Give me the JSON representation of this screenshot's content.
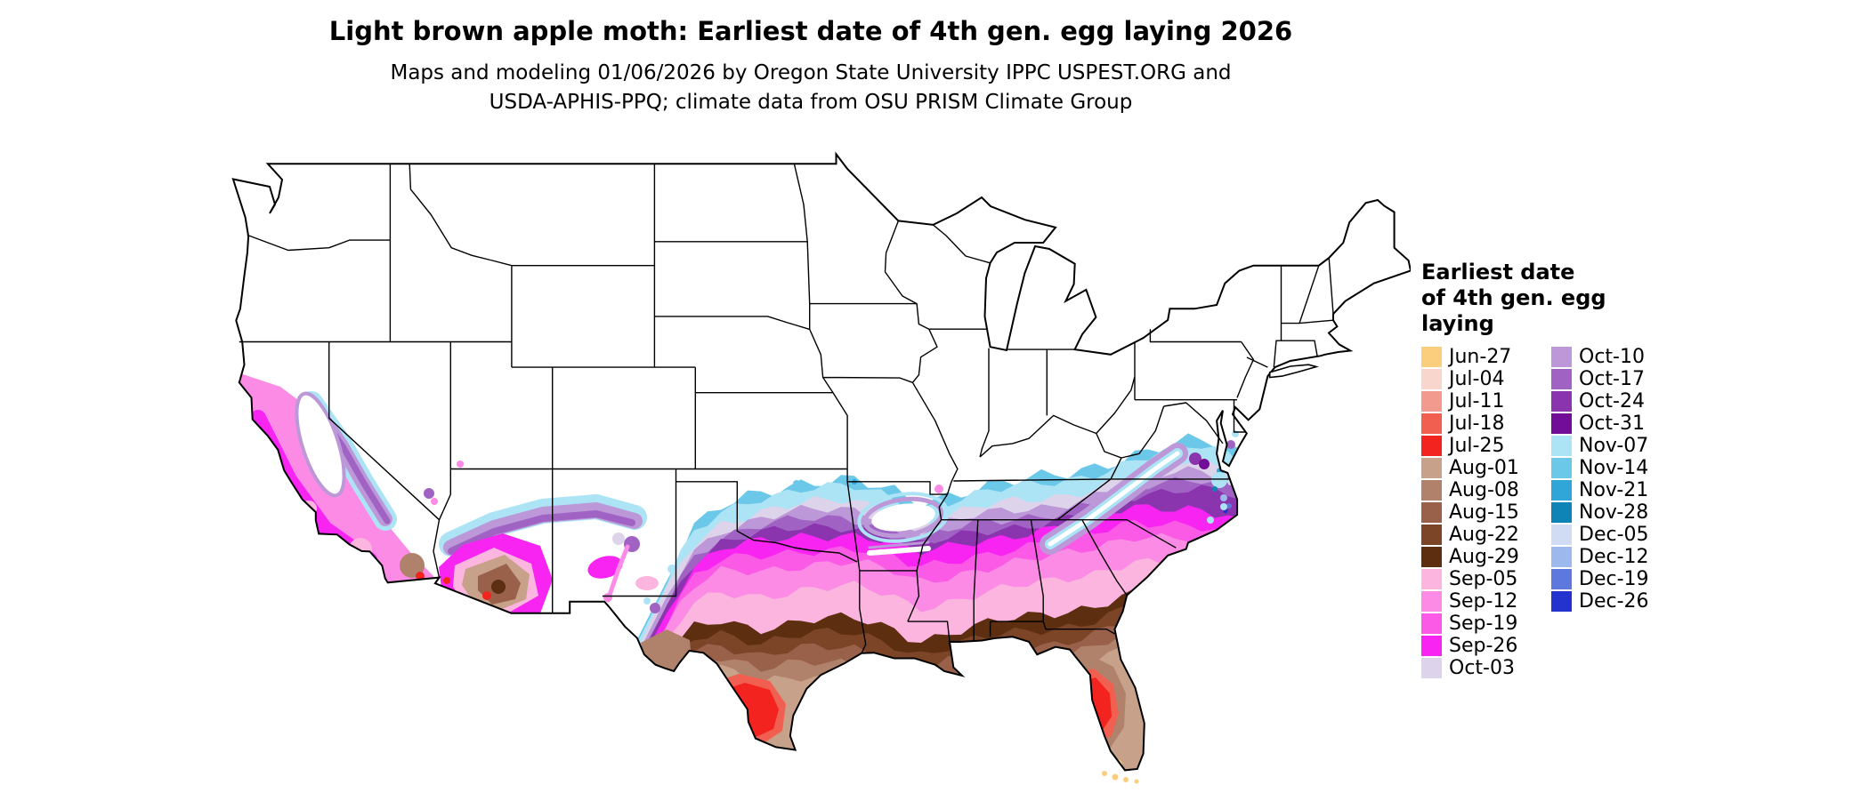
{
  "title": "Light brown apple moth: Earliest date of 4th gen. egg laying 2026",
  "subtitle": {
    "line1": "Maps and modeling 01/06/2026 by Oregon State University IPPC USPEST.ORG and",
    "line2": "USDA-APHIS-PPQ; climate data from OSU PRISM Climate Group"
  },
  "legend": {
    "title_line1": "Earliest date",
    "title_line2": "of 4th gen. egg",
    "title_line3": "laying",
    "columns": [
      {
        "entries": [
          {
            "label": "Jun-27",
            "color": "#FBCE7E"
          },
          {
            "label": "Jul-04",
            "color": "#F8D6CE"
          },
          {
            "label": "Jul-11",
            "color": "#F29A8E"
          },
          {
            "label": "Jul-18",
            "color": "#F15F51"
          },
          {
            "label": "Jul-25",
            "color": "#F32420"
          },
          {
            "label": "Aug-01",
            "color": "#C7A189"
          },
          {
            "label": "Aug-08",
            "color": "#B1826B"
          },
          {
            "label": "Aug-15",
            "color": "#99604A"
          },
          {
            "label": "Aug-22",
            "color": "#7C4527"
          },
          {
            "label": "Aug-29",
            "color": "#5D2F10"
          },
          {
            "label": "Sep-05",
            "color": "#FBB5DF"
          },
          {
            "label": "Sep-12",
            "color": "#FB8BE5"
          },
          {
            "label": "Sep-19",
            "color": "#FA5AE5"
          },
          {
            "label": "Sep-26",
            "color": "#F724F2"
          },
          {
            "label": "Oct-03",
            "color": "#DDD3EA"
          }
        ]
      },
      {
        "entries": [
          {
            "label": "Oct-10",
            "color": "#BC98D8"
          },
          {
            "label": "Oct-17",
            "color": "#A063C4"
          },
          {
            "label": "Oct-24",
            "color": "#8A34AE"
          },
          {
            "label": "Oct-31",
            "color": "#720D98"
          },
          {
            "label": "Nov-07",
            "color": "#ACE4F6"
          },
          {
            "label": "Nov-14",
            "color": "#6CC8E9"
          },
          {
            "label": "Nov-21",
            "color": "#30A6D8"
          },
          {
            "label": "Nov-28",
            "color": "#0E83B6"
          },
          {
            "label": "Dec-05",
            "color": "#CFDCF4"
          },
          {
            "label": "Dec-12",
            "color": "#9DB8EC"
          },
          {
            "label": "Dec-19",
            "color": "#5D79DD"
          },
          {
            "label": "Dec-26",
            "color": "#2433CD"
          }
        ]
      }
    ]
  }
}
